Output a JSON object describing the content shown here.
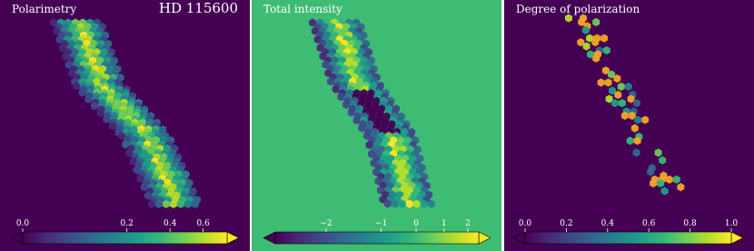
{
  "chart_data": [
    {
      "type": "hexbin",
      "title": "Polarimetry",
      "subtitle": "HD 115600",
      "background": "#440154",
      "colorbar": {
        "scale": "sqrt",
        "lim": [
          0,
          0.77
        ],
        "ticks": [
          {
            "value": 0,
            "label": "0.0"
          },
          0.2,
          0.4,
          0.6
        ]
      }
    },
    {
      "type": "hexbin",
      "title": "Total intensity",
      "background": "#3fbc73",
      "colorbar": {
        "scale": "sqrt",
        "lim": [
          -2.3,
          2.5
        ],
        "ticks": [
          {
            "value": -2,
            "label": "−2"
          },
          {
            "value": -1,
            "label": "−1"
          },
          0,
          1,
          2
        ]
      }
    },
    {
      "type": "hexbin",
      "title": "Degree of polarization",
      "background": "#440154",
      "colorbar": {
        "scale": "linear",
        "lim": [
          0,
          1
        ],
        "ticks": [
          {
            "value": 0,
            "label": "0.0"
          },
          0.2,
          0.4,
          0.6,
          0.8,
          {
            "value": 1,
            "label": "1.0"
          }
        ]
      }
    }
  ]
}
